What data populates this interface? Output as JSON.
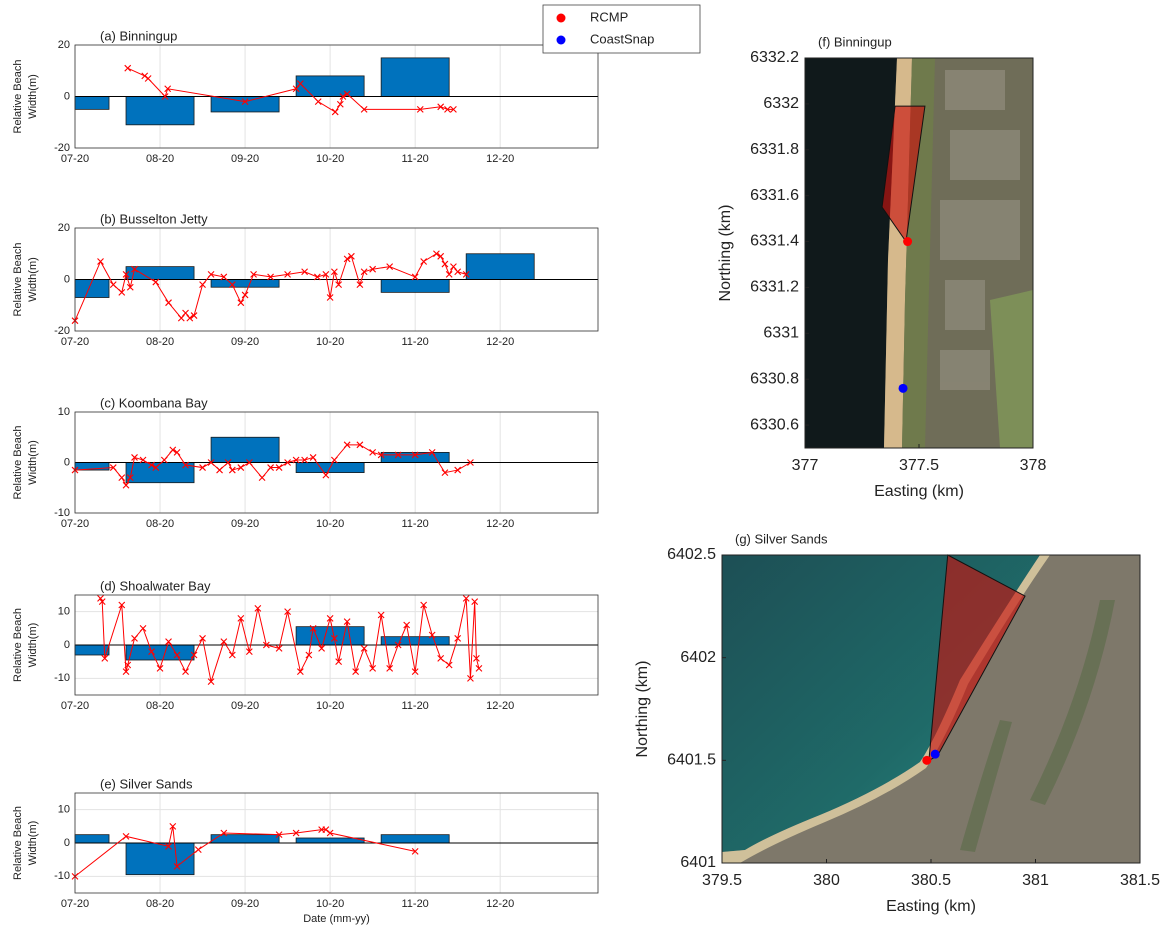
{
  "chart_data": [
    {
      "type": "combo",
      "title": "(a) Binningup",
      "ylabel": [
        "Relative Beach",
        "Width(m)"
      ],
      "xlim": [
        0,
        6.15
      ],
      "xticks": [
        {
          "value": 0,
          "label": "07-20"
        },
        {
          "value": 1,
          "label": "08-20"
        },
        {
          "value": 2,
          "label": "09-20"
        },
        {
          "value": 3,
          "label": "10-20"
        },
        {
          "value": 4,
          "label": "11-20"
        },
        {
          "value": 5,
          "label": "12-20"
        }
      ],
      "ylim": [
        -20,
        20
      ],
      "yticks": [
        -20,
        0,
        20
      ],
      "grid": true,
      "bars": {
        "color": "#0072bd",
        "x": [
          0,
          1,
          2,
          3,
          4
        ],
        "values": [
          -5,
          -11,
          -6,
          8,
          15
        ]
      },
      "line": {
        "color": "#ff0000",
        "x": [
          0.62,
          0.82,
          0.86,
          1.06,
          1.09,
          2.0,
          2.6,
          2.65,
          2.86,
          3.06,
          3.12,
          3.15,
          3.2,
          3.4,
          4.06,
          4.3,
          4.38,
          4.45
        ],
        "values": [
          11,
          8,
          7,
          0,
          3,
          -2,
          3,
          5,
          -2,
          -6,
          -3,
          0,
          1,
          -5,
          -5,
          -4,
          -5,
          -5
        ]
      }
    },
    {
      "type": "combo",
      "title": "(b) Busselton Jetty",
      "ylabel": [
        "Relative Beach",
        "Width(m)"
      ],
      "xlim": [
        0,
        6.15
      ],
      "xticks": [
        {
          "value": 0,
          "label": "07-20"
        },
        {
          "value": 1,
          "label": "08-20"
        },
        {
          "value": 2,
          "label": "09-20"
        },
        {
          "value": 3,
          "label": "10-20"
        },
        {
          "value": 4,
          "label": "11-20"
        },
        {
          "value": 5,
          "label": "12-20"
        }
      ],
      "ylim": [
        -20,
        20
      ],
      "yticks": [
        -20,
        0,
        20
      ],
      "grid": true,
      "bars": {
        "color": "#0072bd",
        "x": [
          0,
          1,
          2,
          4,
          5
        ],
        "values": [
          -7,
          5,
          -3,
          -5,
          10
        ]
      },
      "line": {
        "color": "#ff0000",
        "x": [
          0.0,
          0.3,
          0.45,
          0.55,
          0.6,
          0.65,
          0.7,
          0.95,
          1.1,
          1.25,
          1.3,
          1.35,
          1.4,
          1.5,
          1.6,
          1.75,
          1.85,
          1.95,
          2.0,
          2.1,
          2.3,
          2.5,
          2.7,
          2.85,
          2.95,
          3.0,
          3.05,
          3.1,
          3.2,
          3.25,
          3.35,
          3.4,
          3.5,
          3.7,
          4.0,
          4.1,
          4.25,
          4.3,
          4.35,
          4.4,
          4.45,
          4.5,
          4.6
        ],
        "values": [
          -16,
          7,
          -2,
          -5,
          2,
          -3,
          4,
          -1,
          -9,
          -15,
          -13,
          -15,
          -14,
          -2,
          2,
          1,
          -2,
          -9,
          -6,
          2,
          1,
          2,
          3,
          1,
          2,
          -7,
          3,
          -2,
          8,
          9,
          -2,
          3,
          4,
          5,
          1,
          7,
          10,
          9,
          6,
          2,
          5,
          3,
          2
        ]
      }
    },
    {
      "type": "combo",
      "title": "(c) Koombana Bay",
      "ylabel": [
        "Relative Beach",
        "Width(m)"
      ],
      "xlim": [
        0,
        6.15
      ],
      "xticks": [
        {
          "value": 0,
          "label": "07-20"
        },
        {
          "value": 1,
          "label": "08-20"
        },
        {
          "value": 2,
          "label": "09-20"
        },
        {
          "value": 3,
          "label": "10-20"
        },
        {
          "value": 4,
          "label": "11-20"
        },
        {
          "value": 5,
          "label": "12-20"
        }
      ],
      "ylim": [
        -10,
        10
      ],
      "yticks": [
        -10,
        0,
        10
      ],
      "grid": true,
      "bars": {
        "color": "#0072bd",
        "x": [
          0,
          1,
          2,
          3,
          4
        ],
        "values": [
          -1.5,
          -4,
          5,
          -2,
          2
        ]
      },
      "line": {
        "color": "#ff0000",
        "x": [
          0,
          0.45,
          0.55,
          0.6,
          0.65,
          0.7,
          0.8,
          0.9,
          0.95,
          1.05,
          1.15,
          1.2,
          1.3,
          1.5,
          1.6,
          1.7,
          1.8,
          1.85,
          1.95,
          2.05,
          2.2,
          2.3,
          2.4,
          2.5,
          2.6,
          2.7,
          2.8,
          2.95,
          3.05,
          3.2,
          3.35,
          3.5,
          3.6,
          3.8,
          4.0,
          4.2,
          4.35,
          4.5,
          4.65
        ],
        "values": [
          -1.5,
          -1,
          -3,
          -4.5,
          -3,
          1,
          0.5,
          -0.5,
          -1,
          0.5,
          2.5,
          2,
          -0.5,
          -1,
          0,
          -1.5,
          0,
          -1.5,
          -1,
          0,
          -3,
          -1,
          -1,
          0,
          0.5,
          0.5,
          1,
          -2.5,
          0.5,
          3.5,
          3.5,
          2,
          1.5,
          1.5,
          1.5,
          2,
          -2,
          -1.5,
          0
        ]
      }
    },
    {
      "type": "combo",
      "title": "(d) Shoalwater Bay",
      "ylabel": [
        "Relative Beach",
        "Width(m)"
      ],
      "xlim": [
        0,
        6.15
      ],
      "xticks": [
        {
          "value": 0,
          "label": "07-20"
        },
        {
          "value": 1,
          "label": "08-20"
        },
        {
          "value": 2,
          "label": "09-20"
        },
        {
          "value": 3,
          "label": "10-20"
        },
        {
          "value": 4,
          "label": "11-20"
        },
        {
          "value": 5,
          "label": "12-20"
        }
      ],
      "ylim": [
        -15,
        15
      ],
      "yticks": [
        -10,
        0,
        10
      ],
      "grid": true,
      "bars": {
        "color": "#0072bd",
        "x": [
          0,
          1,
          3,
          4
        ],
        "values": [
          -3,
          -4.5,
          5.5,
          2.5
        ]
      },
      "line": {
        "color": "#ff0000",
        "x": [
          0.3,
          0.32,
          0.35,
          0.55,
          0.6,
          0.62,
          0.7,
          0.8,
          0.9,
          1.0,
          1.1,
          1.2,
          1.3,
          1.4,
          1.5,
          1.6,
          1.75,
          1.85,
          1.95,
          2.05,
          2.15,
          2.25,
          2.4,
          2.5,
          2.65,
          2.75,
          2.8,
          2.9,
          3.0,
          3.05,
          3.1,
          3.2,
          3.3,
          3.4,
          3.5,
          3.6,
          3.7,
          3.8,
          3.9,
          4.0,
          4.1,
          4.2,
          4.3,
          4.4,
          4.5,
          4.6,
          4.65,
          4.7,
          4.72,
          4.75
        ],
        "values": [
          14,
          13,
          -4,
          12,
          -8,
          -6,
          2,
          5,
          -2,
          -7,
          1,
          -3,
          -8,
          -3,
          2,
          -11,
          1,
          -3,
          8,
          -2,
          11,
          0,
          -1,
          10,
          -8,
          -3,
          5,
          -1,
          8,
          2,
          -5,
          7,
          -8,
          -1,
          -7,
          9,
          -7,
          0,
          6,
          -8,
          12,
          3,
          -4,
          -6,
          2,
          14,
          -10,
          13,
          -4,
          -7
        ]
      }
    },
    {
      "type": "combo",
      "title": "(e) Silver Sands",
      "ylabel": [
        "Relative Beach",
        "Width(m)"
      ],
      "xlabel": "Date (mm-yy)",
      "xlim": [
        0,
        6.15
      ],
      "xticks": [
        {
          "value": 0,
          "label": "07-20"
        },
        {
          "value": 1,
          "label": "08-20"
        },
        {
          "value": 2,
          "label": "09-20"
        },
        {
          "value": 3,
          "label": "10-20"
        },
        {
          "value": 4,
          "label": "11-20"
        },
        {
          "value": 5,
          "label": "12-20"
        }
      ],
      "ylim": [
        -15,
        15
      ],
      "yticks": [
        -10,
        0,
        10
      ],
      "grid": true,
      "bars": {
        "color": "#0072bd",
        "x": [
          0,
          1,
          2,
          3,
          4
        ],
        "values": [
          2.5,
          -9.5,
          2.5,
          1.5,
          2.5
        ]
      },
      "line": {
        "color": "#ff0000",
        "x": [
          0,
          0.6,
          1.1,
          1.15,
          1.2,
          1.45,
          1.75,
          2.4,
          2.6,
          2.9,
          2.95,
          3.0,
          4.0
        ],
        "values": [
          -10,
          2,
          -1,
          5,
          -7,
          -2,
          3,
          2.5,
          3,
          4,
          4,
          3,
          -2.5
        ]
      }
    },
    {
      "type": "map",
      "title": "(f) Binningup",
      "xlabel": "Easting (km)",
      "ylabel": "Northing (km)",
      "xlim": [
        377,
        378
      ],
      "xticks": [
        377,
        377.5,
        378
      ],
      "ylim": [
        6330.5,
        6332.2
      ],
      "yticks": [
        6330.6,
        6330.8,
        6331,
        6331.2,
        6331.4,
        6331.6,
        6331.8,
        6332,
        6332.2
      ],
      "legend": true,
      "polygon": {
        "color": "#c8140f",
        "x": [
          377.395,
          377.526,
          377.443,
          377.338
        ],
        "y": [
          6331.99,
          6331.99,
          6331.4,
          6331.55
        ]
      },
      "series": [
        {
          "name": "RCMP",
          "color": "#ff0000",
          "x": [
            377.45
          ],
          "values": [
            6331.4
          ]
        },
        {
          "name": "CoastSnap",
          "color": "#0000ff",
          "x": [
            377.43
          ],
          "values": [
            6330.76
          ]
        }
      ]
    },
    {
      "type": "map",
      "title": "(g) Silver Sands",
      "xlabel": "Easting (km)",
      "ylabel": "Northing (km)",
      "xlim": [
        379.5,
        381.5
      ],
      "xticks": [
        379.5,
        380,
        380.5,
        381,
        381.5
      ],
      "ylim": [
        6401,
        6402.5
      ],
      "yticks": [
        6401,
        6401.5,
        6402,
        6402.5
      ],
      "polygon": {
        "color": "#c8140f",
        "x": [
          380.58,
          380.95,
          380.53,
          380.49
        ],
        "y": [
          6402.5,
          6402.3,
          6401.52,
          6401.5
        ]
      },
      "series": [
        {
          "color": "#ff0000",
          "x": [
            380.48
          ],
          "values": [
            6401.5
          ]
        },
        {
          "color": "#0000ff",
          "x": [
            380.52
          ],
          "values": [
            6401.53
          ]
        }
      ]
    }
  ]
}
